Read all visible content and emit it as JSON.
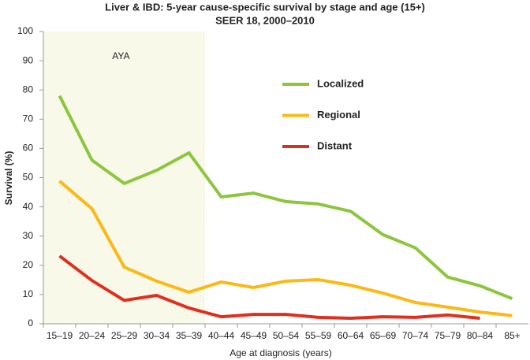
{
  "chart_data": {
    "type": "line",
    "title": "Liver & IBD: 5-year cause-specific survival by stage and age (15+)",
    "subtitle": "SEER 18, 2000–2010",
    "x_label": "Age at diagnosis (years)",
    "y_label": "Survival (%)",
    "annotation": "AYA",
    "categories": [
      "15–19",
      "20–24",
      "25–29",
      "30–34",
      "35–39",
      "40–44",
      "45–49",
      "50–54",
      "55–59",
      "60–64",
      "65–69",
      "70–74",
      "75–79",
      "80–84",
      "85+"
    ],
    "series": [
      {
        "name": "Localized",
        "color": "#8cc63f",
        "values": [
          78,
          56,
          48,
          52.5,
          58.5,
          43.4,
          44.7,
          41.8,
          41,
          38.5,
          30.5,
          26,
          16,
          13,
          8.6
        ]
      },
      {
        "name": "Regional",
        "color": "#fbb917",
        "values": [
          48.8,
          39.4,
          19.4,
          14.6,
          10.8,
          14.3,
          12.4,
          14.6,
          15.1,
          13.2,
          10.5,
          7.3,
          5.7,
          4,
          2.8
        ]
      },
      {
        "name": "Distant",
        "color": "#e02f1f",
        "values": [
          23.2,
          14.8,
          8,
          9.7,
          5.4,
          2.4,
          3.2,
          3.2,
          2.2,
          1.9,
          2.4,
          2.2,
          3,
          1.9,
          null
        ]
      }
    ],
    "ylim": [
      0,
      100
    ],
    "yticks": [
      0,
      10,
      20,
      30,
      40,
      50,
      60,
      70,
      80,
      90,
      100
    ],
    "grid": false
  }
}
